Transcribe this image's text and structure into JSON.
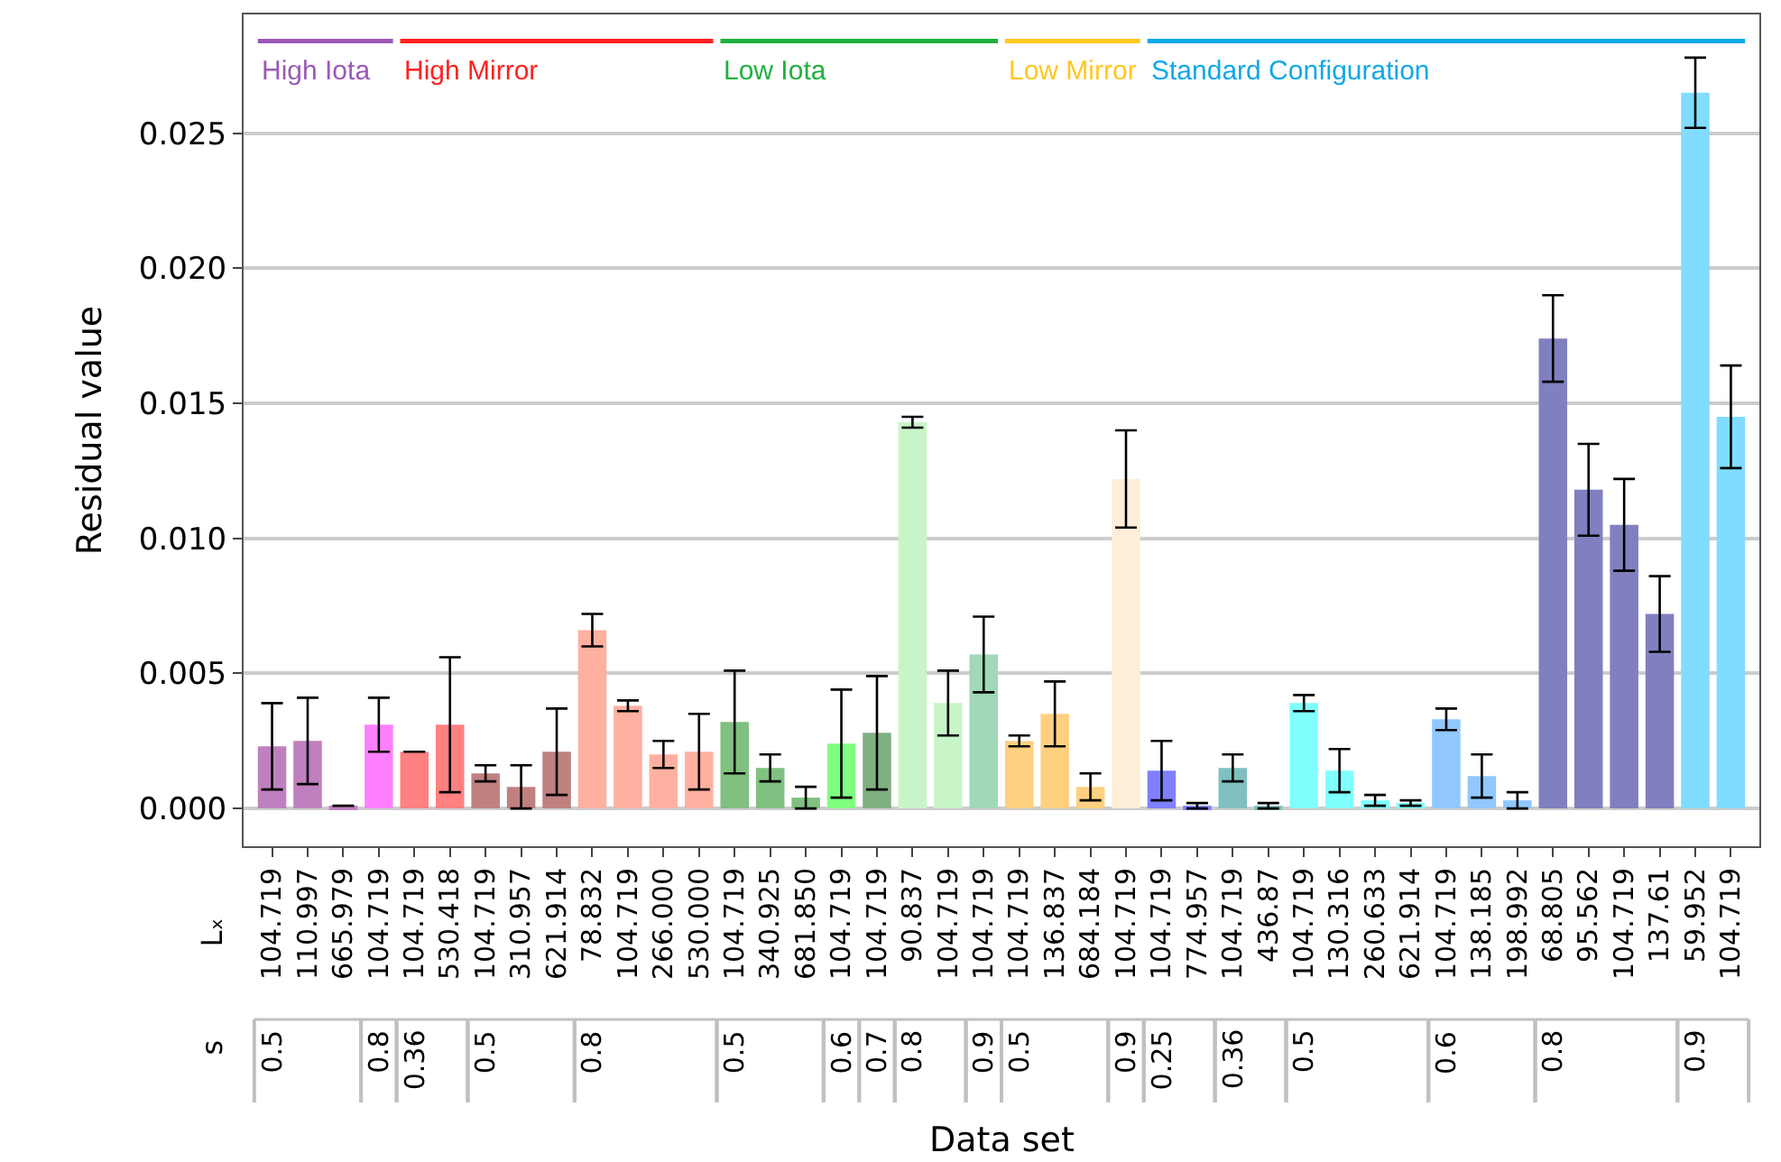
{
  "chart_data": {
    "type": "bar",
    "xlabel": "Data set",
    "ylabel": "Residual value",
    "categories": [
      "104.719",
      "110.997",
      "665.979",
      "104.719",
      "104.719",
      "530.418",
      "104.719",
      "310.957",
      "621.914",
      "78.832",
      "104.719",
      "266.000",
      "530.000",
      "104.719",
      "340.925",
      "681.850",
      "104.719",
      "104.719",
      "90.837",
      "104.719",
      "104.719",
      "104.719",
      "136.837",
      "684.184",
      "104.719",
      "104.719",
      "774.957",
      "104.719",
      "436.87",
      "104.719",
      "130.316",
      "260.633",
      "621.914",
      "104.719",
      "138.185",
      "198.992",
      "68.805",
      "95.562",
      "104.719",
      "137.61",
      "59.952",
      "104.719"
    ],
    "values": [
      0.0023,
      0.0025,
      0.0001,
      0.0031,
      0.0021,
      0.0031,
      0.0013,
      0.0008,
      0.0021,
      0.0066,
      0.0038,
      0.002,
      0.0021,
      0.0032,
      0.0015,
      0.0004,
      0.0024,
      0.0028,
      0.0143,
      0.0039,
      0.0057,
      0.0025,
      0.0035,
      0.0008,
      0.0122,
      0.0014,
      0.0001,
      0.0015,
      0.0001,
      0.0039,
      0.0014,
      0.0003,
      0.0002,
      0.0033,
      0.0012,
      0.0003,
      0.0174,
      0.0118,
      0.0105,
      0.0072,
      0.0265,
      0.0145
    ],
    "errors": [
      0.0016,
      0.0016,
      null,
      0.001,
      null,
      0.0025,
      0.0003,
      0.0008,
      0.0016,
      0.0006,
      0.0002,
      0.0005,
      0.0014,
      0.0019,
      0.0005,
      0.0004,
      0.002,
      0.0021,
      0.0002,
      0.0012,
      0.0014,
      0.0002,
      0.0012,
      0.0005,
      0.0018,
      0.0011,
      0.0001,
      0.0005,
      0.0001,
      0.0003,
      0.0008,
      0.0002,
      0.0001,
      0.0004,
      0.0008,
      0.0003,
      0.0016,
      0.0017,
      0.0017,
      0.0014,
      0.0013,
      0.0019
    ],
    "colors": [
      "#bf80bf",
      "#bf80bf",
      "#bf80bf",
      "#ff80ff",
      "#ff8080",
      "#ff8080",
      "#c08080",
      "#c08080",
      "#c08080",
      "#ffb0a0",
      "#ffb0a0",
      "#ffb0a0",
      "#ffb0a0",
      "#80c080",
      "#80c080",
      "#80c080",
      "#80ff80",
      "#80b080",
      "#c8f5c8",
      "#c8f5c8",
      "#a0d8b8",
      "#ffd080",
      "#ffd080",
      "#ffd080",
      "#ffeed8",
      "#8080ff",
      "#8080ff",
      "#80c0c0",
      "#80c0c0",
      "#80ffff",
      "#80ffff",
      "#80ffff",
      "#80ffff",
      "#90c8ff",
      "#90c8ff",
      "#90c8ff",
      "#8080c0",
      "#8080c0",
      "#8080c0",
      "#8080c0",
      "#80ddff",
      "#80ddff"
    ],
    "ylim": [
      -0.0014,
      0.0294
    ],
    "yticks": [
      {
        "value": 0,
        "label": "0.000"
      },
      {
        "value": 0.005,
        "label": "0.005"
      },
      {
        "value": 0.01,
        "label": "0.010"
      },
      {
        "value": 0.015,
        "label": "0.015"
      },
      {
        "value": 0.02,
        "label": "0.020"
      },
      {
        "value": 0.025,
        "label": "0.025"
      }
    ],
    "grid": "y",
    "annotations": [
      "Lₓ",
      "s",
      "High Iota",
      "High Mirror",
      "Low Iota",
      "Low Mirror",
      "Standard Configuration",
      "0.5",
      "0.8",
      "0.36",
      "0.5",
      "0.8",
      "0.5",
      "0.6",
      "0.7",
      "0.8",
      "0.9",
      "0.5",
      "0.9",
      "0.25",
      "0.36",
      "0.5",
      "0.6",
      "0.8",
      "0.9"
    ]
  }
}
